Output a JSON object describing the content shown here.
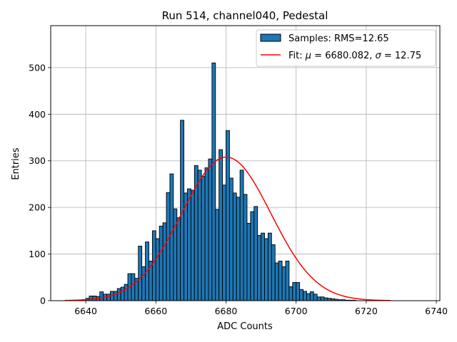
{
  "chart_data": {
    "type": "bar",
    "title": "Run 514, channel040, Pedestal",
    "xlabel": "ADC Counts",
    "ylabel": "Entries",
    "xlim": [
      6630,
      6741
    ],
    "ylim": [
      0,
      590
    ],
    "xticks": [
      6640,
      6660,
      6680,
      6700,
      6720,
      6740
    ],
    "yticks": [
      0,
      100,
      200,
      300,
      400,
      500
    ],
    "grid": true,
    "legend_position": "top-right",
    "bin_width": 1,
    "series": [
      {
        "name": "Samples: RMS=12.65",
        "kind": "histogram",
        "color": "#1f77b4",
        "edgecolor": "#000000",
        "bins": [
          6635,
          6636,
          6637,
          6638,
          6639,
          6640,
          6641,
          6642,
          6643,
          6644,
          6645,
          6646,
          6647,
          6648,
          6649,
          6650,
          6651,
          6652,
          6653,
          6654,
          6655,
          6656,
          6657,
          6658,
          6659,
          6660,
          6661,
          6662,
          6663,
          6664,
          6665,
          6666,
          6667,
          6668,
          6669,
          6670,
          6671,
          6672,
          6673,
          6674,
          6675,
          6676,
          6677,
          6678,
          6679,
          6680,
          6681,
          6682,
          6683,
          6684,
          6685,
          6686,
          6687,
          6688,
          6689,
          6690,
          6691,
          6692,
          6693,
          6694,
          6695,
          6696,
          6697,
          6698,
          6699,
          6700,
          6701,
          6702,
          6703,
          6704,
          6705,
          6706,
          6707,
          6708,
          6709,
          6710,
          6711,
          6712,
          6713,
          6714,
          6715,
          6716,
          6717,
          6718,
          6719,
          6720,
          6721,
          6722,
          6723,
          6724,
          6725,
          6726
        ],
        "values": [
          0,
          0,
          0,
          1,
          2,
          5,
          10,
          10,
          9,
          19,
          14,
          14,
          20,
          20,
          26,
          29,
          35,
          58,
          58,
          48,
          117,
          73,
          126,
          85,
          150,
          133,
          160,
          167,
          232,
          272,
          197,
          178,
          387,
          231,
          240,
          237,
          290,
          280,
          267,
          285,
          304,
          510,
          196,
          324,
          248,
          365,
          263,
          231,
          222,
          280,
          228,
          166,
          191,
          202,
          140,
          145,
          133,
          145,
          120,
          81,
          85,
          73,
          85,
          30,
          39,
          39,
          24,
          20,
          15,
          19,
          14,
          8,
          8,
          6,
          5,
          4,
          3,
          2,
          2,
          1,
          1,
          1,
          0,
          0,
          0,
          0,
          0,
          0,
          0,
          0,
          0,
          0
        ]
      },
      {
        "name": "Fit: μ = 6680.082, σ = 12.75",
        "kind": "gaussian_fit",
        "color": "#ff0000",
        "mu": 6680.082,
        "sigma": 12.75,
        "amplitude": 308,
        "x_range": [
          6634,
          6727
        ]
      }
    ]
  },
  "legend": {
    "samples_label": "Samples: RMS=12.65",
    "fit_prefix": "Fit: ",
    "fit_mu_symbol": "μ",
    "fit_mu_value": " = 6680.082, ",
    "fit_sigma_symbol": "σ",
    "fit_sigma_value": " = 12.75"
  }
}
